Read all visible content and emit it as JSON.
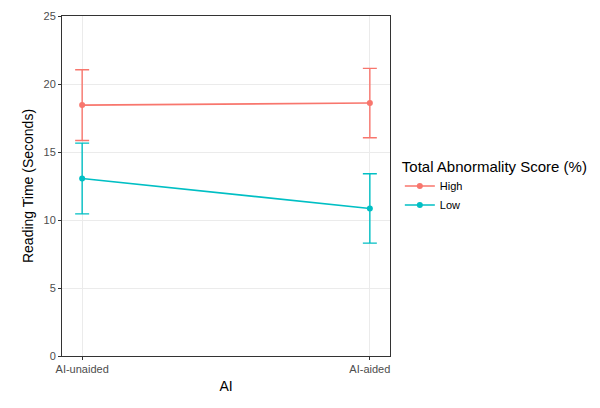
{
  "chart_data": {
    "type": "line",
    "x_label": "AI",
    "y_label": "Reading Time (Seconds)",
    "legend_title": "Total Abnormality Score (%)",
    "categories": [
      "AI-unaided",
      "AI-aided"
    ],
    "series": [
      {
        "name": "High",
        "color": "#F8766D",
        "marker": "circle",
        "values": [
          18.45,
          18.6
        ],
        "error": [
          2.6,
          2.55
        ]
      },
      {
        "name": "Low",
        "color": "#00BFC4",
        "marker": "circle",
        "values": [
          13.05,
          10.85
        ],
        "error": [
          2.6,
          2.55
        ]
      }
    ],
    "ylim": [
      0,
      25
    ],
    "yticks": [
      0,
      5,
      10,
      15,
      20,
      25
    ],
    "grid": true,
    "legend": "right"
  }
}
